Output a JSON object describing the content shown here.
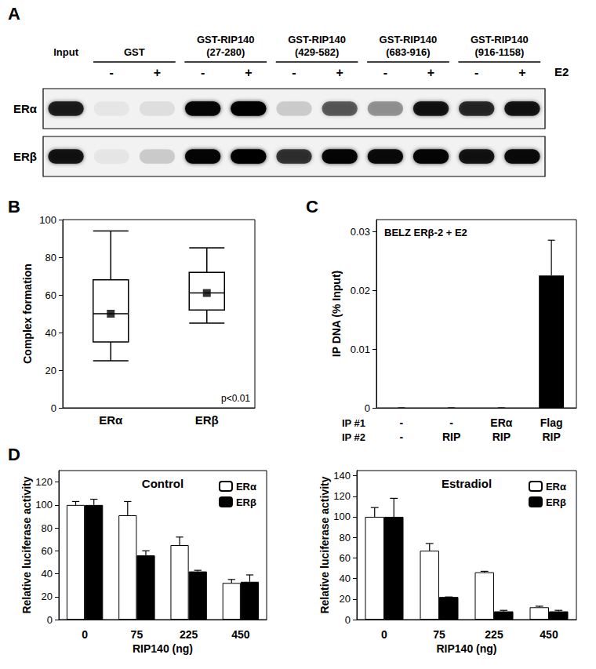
{
  "chart_data": [
    {
      "panel": "A",
      "type": "blot",
      "treatment": "E2",
      "groups": [
        {
          "name": "Input",
          "lanes": [
            null
          ]
        },
        {
          "name": "GST",
          "lanes": [
            "-",
            "+"
          ]
        },
        {
          "name": "GST-RIP140",
          "subtitle": "(27-280)",
          "lanes": [
            "-",
            "+"
          ]
        },
        {
          "name": "GST-RIP140",
          "subtitle": "(429-582)",
          "lanes": [
            "-",
            "+"
          ]
        },
        {
          "name": "GST-RIP140",
          "subtitle": "(683-916)",
          "lanes": [
            "-",
            "+"
          ]
        },
        {
          "name": "GST-RIP140",
          "subtitle": "(916-1158)",
          "lanes": [
            "-",
            "+"
          ]
        }
      ],
      "rows": [
        {
          "name": "ERα",
          "intensity": [
            0.8,
            0.05,
            0.08,
            0.95,
            1.0,
            0.15,
            0.55,
            0.35,
            0.85,
            0.75,
            0.85
          ]
        },
        {
          "name": "ERβ",
          "intensity": [
            0.85,
            0.05,
            0.15,
            0.95,
            1.0,
            0.7,
            0.95,
            0.9,
            0.95,
            0.85,
            0.9
          ]
        }
      ]
    },
    {
      "panel": "B",
      "type": "boxplot",
      "categories": [
        "ERα",
        "ERβ"
      ],
      "y_label": "Complex formation",
      "ylim": [
        0,
        100
      ],
      "yticks": [
        0,
        20,
        40,
        60,
        80,
        100
      ],
      "stats": [
        {
          "min": 25,
          "q1": 35,
          "median": 50,
          "q3": 68,
          "max": 94
        },
        {
          "min": 45,
          "q1": 52,
          "median": 61,
          "q3": 72,
          "max": 85
        }
      ],
      "marker": "square",
      "annotation": "p<0.01",
      "grid": false
    },
    {
      "panel": "C",
      "type": "bar",
      "title": "BELZ ERβ-2 + E2",
      "category_rows": [
        "IP #1",
        "IP #2"
      ],
      "categories": [
        [
          "-",
          "-"
        ],
        [
          "-",
          "RIP"
        ],
        [
          "ERα",
          "RIP"
        ],
        [
          "Flag",
          "RIP"
        ]
      ],
      "values": [
        0,
        0,
        0,
        0.0225
      ],
      "errors": [
        0,
        0,
        0,
        0.006
      ],
      "color": "#000000",
      "y_label": "IP DNA (% Input)",
      "ylim": [
        0,
        0.032
      ],
      "yticks": [
        0,
        0.01,
        0.02,
        0.03
      ],
      "grid": false
    },
    {
      "panel": "D",
      "type": "bar",
      "title": "Control",
      "categories": [
        "0",
        "75",
        "225",
        "450"
      ],
      "x_label": "RIP140 (ng)",
      "y_label": "Relative luciferase activity",
      "ylim": [
        0,
        130
      ],
      "yticks": [
        0,
        20,
        40,
        60,
        80,
        100,
        120
      ],
      "legend": "top-right",
      "grid": false,
      "series": [
        {
          "name": "ERα",
          "color": "#ffffff",
          "values": [
            100,
            91,
            65,
            32
          ],
          "errors": [
            3,
            12,
            7,
            3
          ]
        },
        {
          "name": "ERβ",
          "color": "#000000",
          "values": [
            100,
            56,
            42,
            33
          ],
          "errors": [
            5,
            4,
            1,
            6
          ]
        }
      ]
    },
    {
      "type": "bar",
      "title": "Estradiol",
      "categories": [
        "0",
        "75",
        "225",
        "450"
      ],
      "x_label": "RIP140 (ng)",
      "y_label": "Relative luciferase activity",
      "ylim": [
        0,
        145
      ],
      "yticks": [
        0,
        20,
        40,
        60,
        80,
        100,
        120,
        140
      ],
      "legend": "top-right",
      "grid": false,
      "series": [
        {
          "name": "ERα",
          "color": "#ffffff",
          "values": [
            100,
            67,
            46,
            12
          ],
          "errors": [
            9,
            7,
            1,
            1
          ]
        },
        {
          "name": "ERβ",
          "color": "#000000",
          "values": [
            100,
            22,
            8,
            8
          ],
          "errors": [
            18,
            0,
            1,
            1
          ]
        }
      ]
    }
  ]
}
